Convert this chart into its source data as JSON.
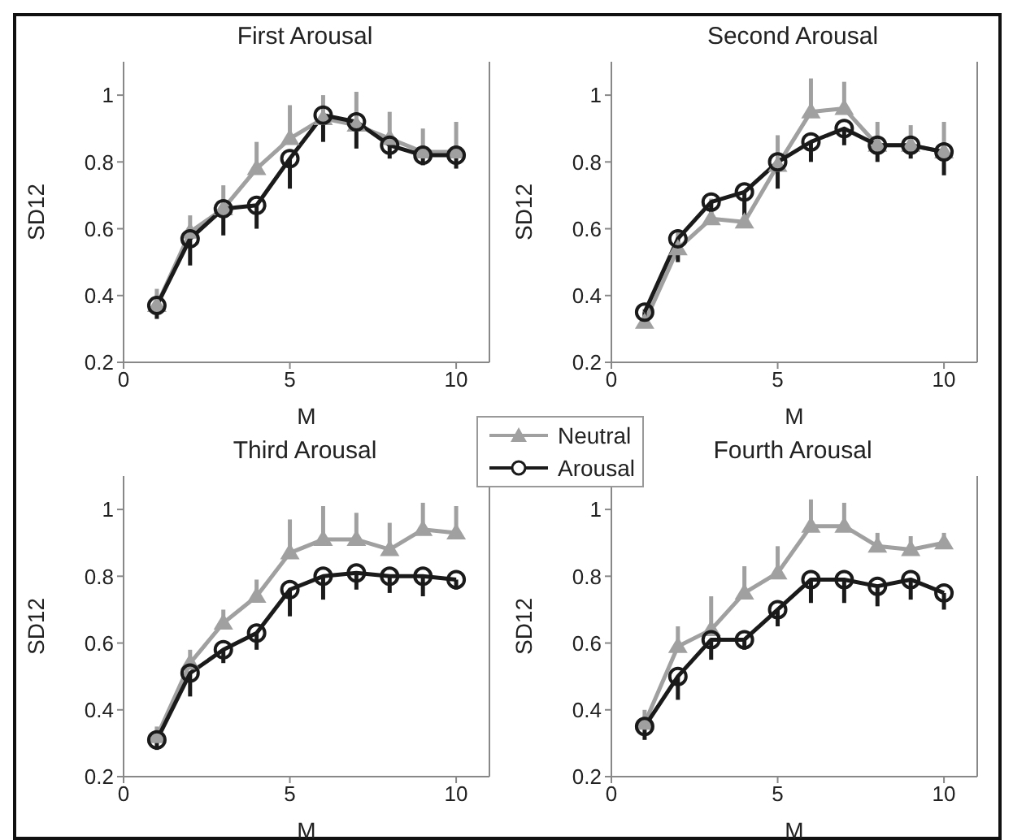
{
  "chart_data": [
    {
      "type": "line",
      "title": "First Arousal",
      "xlabel": "M",
      "ylabel": "SD12",
      "x": [
        1,
        2,
        3,
        4,
        5,
        6,
        7,
        8,
        9,
        10
      ],
      "xlim": [
        0,
        11
      ],
      "xticks": [
        0,
        5,
        10
      ],
      "ylim": [
        0.2,
        1.1
      ],
      "yticks": [
        0.2,
        0.4,
        0.6,
        0.8,
        1
      ],
      "legend": "bottom right",
      "series": [
        {
          "name": "Neutral",
          "color": "#a0a0a0",
          "marker": "triangle",
          "values": [
            0.37,
            0.59,
            0.66,
            0.78,
            0.87,
            0.93,
            0.91,
            0.87,
            0.83,
            0.83
          ],
          "errors": [
            [
              0.37,
              0.42
            ],
            [
              0.59,
              0.64
            ],
            [
              0.66,
              0.73
            ],
            [
              0.78,
              0.86
            ],
            [
              0.87,
              0.97
            ],
            [
              0.93,
              1.0
            ],
            [
              0.91,
              1.01
            ],
            [
              0.87,
              0.95
            ],
            [
              0.83,
              0.9
            ],
            [
              0.83,
              0.92
            ]
          ]
        },
        {
          "name": "Arousal",
          "color": "#1a1a1a",
          "marker": "circle",
          "values": [
            0.37,
            0.57,
            0.66,
            0.67,
            0.81,
            0.94,
            0.92,
            0.85,
            0.82,
            0.82
          ],
          "errors": [
            [
              0.33,
              0.37
            ],
            [
              0.49,
              0.57
            ],
            [
              0.58,
              0.66
            ],
            [
              0.6,
              0.67
            ],
            [
              0.72,
              0.81
            ],
            [
              0.86,
              0.94
            ],
            [
              0.84,
              0.92
            ],
            [
              0.81,
              0.85
            ],
            [
              0.79,
              0.82
            ],
            [
              0.78,
              0.82
            ]
          ]
        }
      ]
    },
    {
      "type": "line",
      "title": "Second Arousal",
      "xlabel": "M",
      "ylabel": "SD12",
      "x": [
        1,
        2,
        3,
        4,
        5,
        6,
        7,
        8,
        9,
        10
      ],
      "xlim": [
        0,
        11
      ],
      "xticks": [
        0,
        5,
        10
      ],
      "ylim": [
        0.2,
        1.1
      ],
      "yticks": [
        0.2,
        0.4,
        0.6,
        0.8,
        1
      ],
      "series": [
        {
          "color": "#a0a0a0",
          "marker": "triangle",
          "values": [
            0.32,
            0.54,
            0.63,
            0.62,
            0.79,
            0.95,
            0.96,
            0.85,
            0.85,
            0.83
          ],
          "errors": [
            [
              0.32,
              0.36
            ],
            [
              0.54,
              0.59
            ],
            [
              0.63,
              0.69
            ],
            [
              0.62,
              0.69
            ],
            [
              0.79,
              0.88
            ],
            [
              0.95,
              1.05
            ],
            [
              0.96,
              1.04
            ],
            [
              0.85,
              0.92
            ],
            [
              0.85,
              0.91
            ],
            [
              0.83,
              0.92
            ]
          ]
        },
        {
          "color": "#1a1a1a",
          "marker": "circle",
          "values": [
            0.35,
            0.57,
            0.68,
            0.71,
            0.8,
            0.86,
            0.9,
            0.85,
            0.85,
            0.83
          ],
          "errors": [
            [
              0.32,
              0.35
            ],
            [
              0.5,
              0.57
            ],
            [
              0.62,
              0.68
            ],
            [
              0.64,
              0.71
            ],
            [
              0.72,
              0.8
            ],
            [
              0.8,
              0.86
            ],
            [
              0.85,
              0.9
            ],
            [
              0.8,
              0.85
            ],
            [
              0.81,
              0.85
            ],
            [
              0.76,
              0.83
            ]
          ]
        }
      ]
    },
    {
      "type": "line",
      "title": "Third Arousal",
      "xlabel": "M",
      "ylabel": "SD12",
      "x": [
        1,
        2,
        3,
        4,
        5,
        6,
        7,
        8,
        9,
        10
      ],
      "xlim": [
        0,
        11
      ],
      "xticks": [
        0,
        5,
        10
      ],
      "ylim": [
        0.2,
        1.1
      ],
      "yticks": [
        0.2,
        0.4,
        0.6,
        0.8,
        1
      ],
      "series": [
        {
          "color": "#a0a0a0",
          "marker": "triangle",
          "values": [
            0.32,
            0.54,
            0.66,
            0.74,
            0.87,
            0.91,
            0.91,
            0.88,
            0.94,
            0.93
          ],
          "errors": [
            [
              0.32,
              0.35
            ],
            [
              0.54,
              0.58
            ],
            [
              0.66,
              0.7
            ],
            [
              0.74,
              0.79
            ],
            [
              0.87,
              0.97
            ],
            [
              0.91,
              1.01
            ],
            [
              0.91,
              0.99
            ],
            [
              0.88,
              0.96
            ],
            [
              0.94,
              1.02
            ],
            [
              0.93,
              1.01
            ]
          ]
        },
        {
          "color": "#1a1a1a",
          "marker": "circle",
          "values": [
            0.31,
            0.51,
            0.58,
            0.63,
            0.76,
            0.8,
            0.81,
            0.8,
            0.8,
            0.79
          ],
          "errors": [
            [
              0.28,
              0.31
            ],
            [
              0.44,
              0.51
            ],
            [
              0.54,
              0.58
            ],
            [
              0.58,
              0.63
            ],
            [
              0.68,
              0.76
            ],
            [
              0.73,
              0.8
            ],
            [
              0.76,
              0.81
            ],
            [
              0.75,
              0.8
            ],
            [
              0.74,
              0.8
            ],
            [
              0.76,
              0.79
            ]
          ]
        }
      ]
    },
    {
      "type": "line",
      "title": "Fourth Arousal",
      "xlabel": "M",
      "ylabel": "SD12",
      "x": [
        1,
        2,
        3,
        4,
        5,
        6,
        7,
        8,
        9,
        10
      ],
      "xlim": [
        0,
        11
      ],
      "xticks": [
        0,
        5,
        10
      ],
      "ylim": [
        0.2,
        1.1
      ],
      "yticks": [
        0.2,
        0.4,
        0.6,
        0.8,
        1
      ],
      "series": [
        {
          "color": "#a0a0a0",
          "marker": "triangle",
          "values": [
            0.36,
            0.59,
            0.64,
            0.75,
            0.81,
            0.95,
            0.95,
            0.89,
            0.88,
            0.9
          ],
          "errors": [
            [
              0.36,
              0.4
            ],
            [
              0.59,
              0.65
            ],
            [
              0.64,
              0.74
            ],
            [
              0.75,
              0.83
            ],
            [
              0.81,
              0.89
            ],
            [
              0.95,
              1.03
            ],
            [
              0.95,
              1.02
            ],
            [
              0.89,
              0.93
            ],
            [
              0.88,
              0.92
            ],
            [
              0.9,
              0.93
            ]
          ]
        },
        {
          "color": "#1a1a1a",
          "marker": "circle",
          "values": [
            0.35,
            0.5,
            0.61,
            0.61,
            0.7,
            0.79,
            0.79,
            0.77,
            0.79,
            0.75
          ],
          "errors": [
            [
              0.31,
              0.35
            ],
            [
              0.43,
              0.5
            ],
            [
              0.55,
              0.61
            ],
            [
              0.58,
              0.61
            ],
            [
              0.65,
              0.7
            ],
            [
              0.72,
              0.79
            ],
            [
              0.72,
              0.79
            ],
            [
              0.71,
              0.77
            ],
            [
              0.73,
              0.79
            ],
            [
              0.7,
              0.75
            ]
          ]
        }
      ]
    }
  ]
}
